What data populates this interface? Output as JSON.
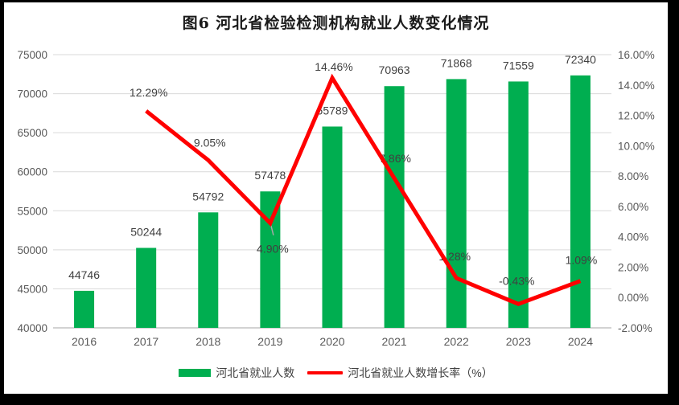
{
  "title": "图6 河北省检验检测机构就业人数变化情况",
  "legend": {
    "bars_label": "河北省就业人数",
    "line_label": "河北省就业人数增长率（%）"
  },
  "colors": {
    "bar": "#00AE50",
    "line": "#FF0000",
    "grid": "#D9D9D9",
    "axis_line": "#D2D2D2",
    "axis_text": "#595959",
    "data_label": "#404040",
    "leader": "#A6A6A6",
    "frame": "#000000",
    "background": "#FFFFFF"
  },
  "chart_data": {
    "type": "bar+line",
    "title": "图6 河北省检验检测机构就业人数变化情况",
    "categories": [
      "2016",
      "2017",
      "2018",
      "2019",
      "2020",
      "2021",
      "2022",
      "2023",
      "2024"
    ],
    "series": [
      {
        "name": "河北省就业人数",
        "type": "bar",
        "axis": "left",
        "values": [
          44746,
          50244,
          54792,
          57478,
          65789,
          70963,
          71868,
          71559,
          72340
        ],
        "labels": [
          "44746",
          "50244",
          "54792",
          "57478",
          "65789",
          "70963",
          "71868",
          "71559",
          "72340"
        ]
      },
      {
        "name": "河北省就业人数增长率（%）",
        "type": "line",
        "axis": "right",
        "values": [
          null,
          12.29,
          9.05,
          4.9,
          14.46,
          7.86,
          1.28,
          -0.43,
          1.09
        ],
        "labels": [
          null,
          "12.29%",
          "9.05%",
          "4.90%",
          "14.46%",
          "7.86%",
          "1.28%",
          "-0.43%",
          "1.09%"
        ]
      }
    ],
    "left_axis": {
      "min": 40000,
      "max": 75000,
      "step": 5000,
      "ticks": [
        "40000",
        "45000",
        "50000",
        "55000",
        "60000",
        "65000",
        "70000",
        "75000"
      ]
    },
    "right_axis": {
      "min": -2,
      "max": 16,
      "step": 2,
      "ticks": [
        "-2.00%",
        "0.00%",
        "2.00%",
        "4.00%",
        "6.00%",
        "8.00%",
        "10.00%",
        "12.00%",
        "14.00%",
        "16.00%"
      ]
    },
    "grid": true,
    "legend_position": "bottom"
  }
}
